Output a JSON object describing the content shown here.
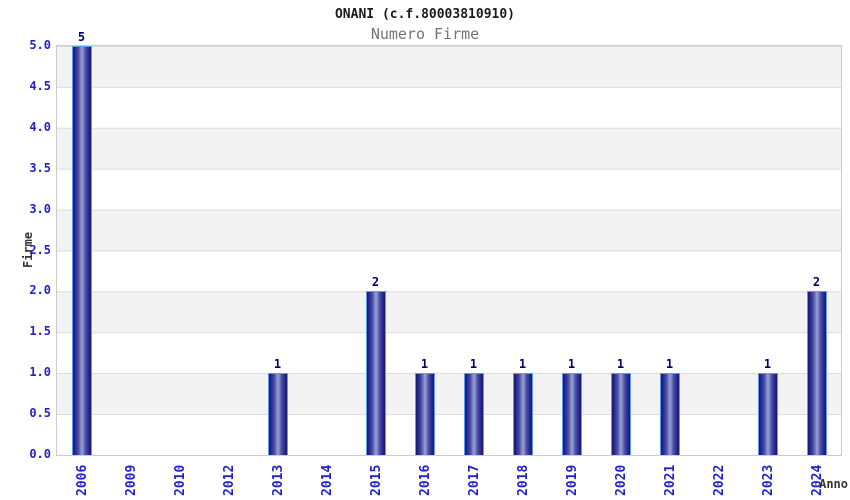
{
  "chart": {
    "title": "ONANI (c.f.80003810910)",
    "subtitle": "Numero Firme",
    "ylabel": "Firme",
    "xlabel": "Anno"
  },
  "chart_data": {
    "type": "bar",
    "title": "ONANI (c.f.80003810910)",
    "subtitle": "Numero Firme",
    "xlabel": "Anno",
    "ylabel": "Firme",
    "categories": [
      "2006",
      "2009",
      "2010",
      "2012",
      "2013",
      "2014",
      "2015",
      "2016",
      "2017",
      "2018",
      "2019",
      "2020",
      "2021",
      "2022",
      "2023",
      "2024"
    ],
    "values": [
      5,
      0,
      0,
      0,
      1,
      0,
      2,
      1,
      1,
      1,
      1,
      1,
      1,
      0,
      1,
      2
    ],
    "bar_value_labels_shown": true,
    "ylim": [
      0,
      5
    ],
    "ytick_step": 0.5,
    "yticks": [
      "0.0",
      "0.5",
      "1.0",
      "1.5",
      "2.0",
      "2.5",
      "3.0",
      "3.5",
      "4.0",
      "4.5",
      "5.0"
    ],
    "xtick_rotation_degrees": -90,
    "grid": "horizontal gridlines every 0.5 with alternating gray/white bands",
    "legend": "none"
  },
  "colors": {
    "bar_edge": "#191970",
    "bar_mid": "#23238f",
    "bar_inner": "#4a4fa5",
    "bar_center": "#9ba3d6",
    "bar_border": "#5b9bf0",
    "tick_label_blue": "#2222cc",
    "data_label_navy": "#000066",
    "band_gray": "#f3f3f3",
    "band_white": "#ffffff",
    "gridline": "#dcdcdc",
    "plot_border": "#cccccc",
    "title_color": "#1a1a1a",
    "subtitle_gray": "#747474",
    "axis_label_color": "#333333"
  }
}
